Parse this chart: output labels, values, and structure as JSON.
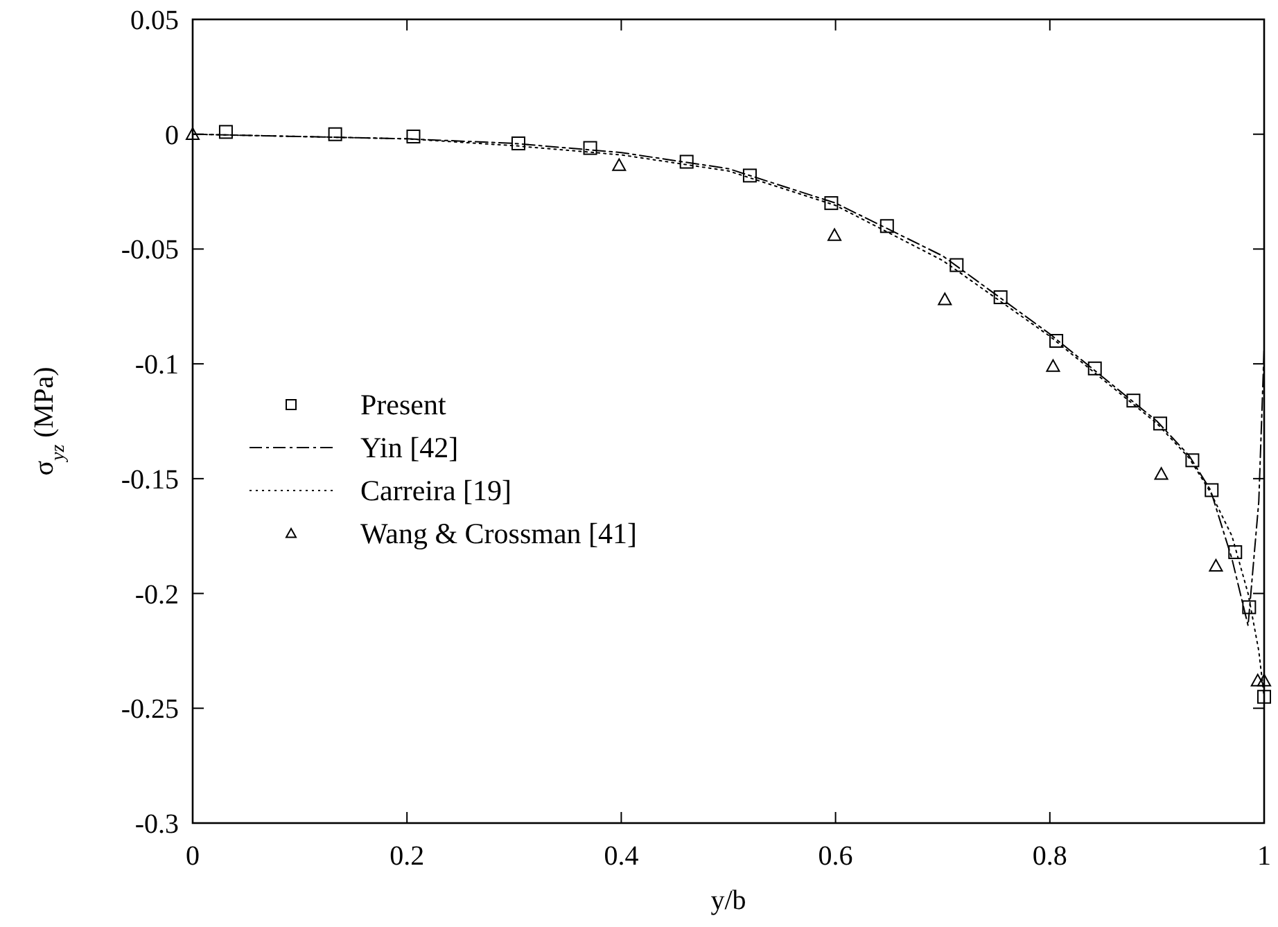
{
  "chart_data": {
    "type": "line",
    "xlabel": "y/b",
    "ylabel": "σ$_{yz}$ (MPa)",
    "xlim": [
      0,
      1
    ],
    "ylim": [
      -0.3,
      0.05
    ],
    "xticks": [
      0,
      0.2,
      0.4,
      0.6,
      0.8,
      1
    ],
    "yticks": [
      -0.3,
      -0.25,
      -0.2,
      -0.15,
      -0.1,
      -0.05,
      0,
      0.05
    ],
    "grid": false,
    "legend": "left",
    "series": [
      {
        "name": "Present",
        "type": "scatter",
        "marker": "square",
        "color": "#000000",
        "x": [
          0.031,
          0.133,
          0.206,
          0.304,
          0.371,
          0.461,
          0.52,
          0.596,
          0.648,
          0.713,
          0.754,
          0.806,
          0.842,
          0.878,
          0.903,
          0.933,
          0.951,
          0.973,
          0.986,
          1.0
        ],
        "values": [
          0.001,
          0,
          -0.001,
          -0.004,
          -0.006,
          -0.012,
          -0.018,
          -0.03,
          -0.04,
          -0.057,
          -0.071,
          -0.09,
          -0.102,
          -0.116,
          -0.126,
          -0.142,
          -0.155,
          -0.182,
          -0.206,
          -0.245
        ]
      },
      {
        "name": "Yin [42]",
        "line_style": "dashed",
        "marker": "none",
        "color": "#000000",
        "x": [
          0,
          0.1,
          0.2,
          0.3,
          0.4,
          0.5,
          0.6,
          0.7,
          0.8,
          0.85,
          0.9,
          0.93,
          0.95,
          0.97,
          0.985,
          0.995,
          1.0
        ],
        "values": [
          0,
          -0.001,
          -0.002,
          -0.004,
          -0.008,
          -0.015,
          -0.03,
          -0.053,
          -0.087,
          -0.106,
          -0.125,
          -0.14,
          -0.155,
          -0.185,
          -0.214,
          -0.16,
          -0.093
        ]
      },
      {
        "name": "Carreira [19]",
        "line_style": "dotted",
        "marker": "none",
        "color": "#000000",
        "x": [
          0,
          0.1,
          0.2,
          0.3,
          0.4,
          0.5,
          0.6,
          0.7,
          0.8,
          0.85,
          0.9,
          0.93,
          0.95,
          0.97,
          0.985,
          0.995,
          1.0
        ],
        "values": [
          0,
          -0.001,
          -0.002,
          -0.005,
          -0.009,
          -0.016,
          -0.031,
          -0.055,
          -0.088,
          -0.107,
          -0.126,
          -0.141,
          -0.156,
          -0.175,
          -0.2,
          -0.225,
          -0.245
        ]
      },
      {
        "name": "Wang & Crossman [41]",
        "type": "scatter",
        "marker": "triangle",
        "color": "#000000",
        "x": [
          0,
          0.398,
          0.599,
          0.702,
          0.803,
          0.904,
          0.955,
          0.994,
          1.0
        ],
        "values": [
          0,
          -0.0135,
          -0.044,
          -0.072,
          -0.101,
          -0.148,
          -0.188,
          -0.238,
          -0.238
        ]
      }
    ]
  }
}
